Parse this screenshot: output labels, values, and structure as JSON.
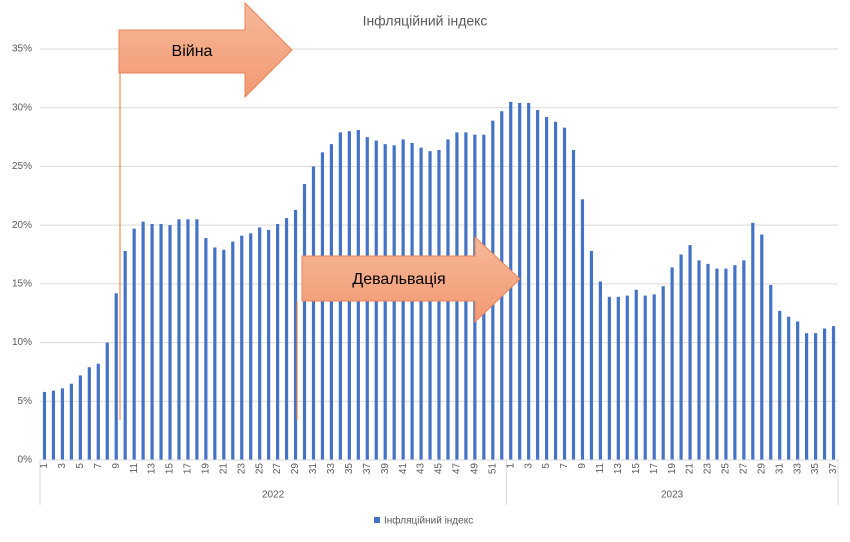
{
  "chart_data": {
    "type": "bar",
    "title": "Інфляційний індекс",
    "categories": [
      "1",
      null,
      "3",
      null,
      "5",
      null,
      "7",
      null,
      "9",
      null,
      "11",
      null,
      "13",
      null,
      "15",
      null,
      "17",
      null,
      "19",
      null,
      "21",
      null,
      "23",
      null,
      "25",
      null,
      "27",
      null,
      "29",
      null,
      "31",
      null,
      "33",
      null,
      "35",
      null,
      "37",
      null,
      "39",
      null,
      "41",
      null,
      "43",
      null,
      "45",
      null,
      "47",
      null,
      "49",
      null,
      "51",
      null,
      "1",
      null,
      "3",
      null,
      "5",
      null,
      "7",
      null,
      "9",
      null,
      "11",
      null,
      "13",
      null,
      "15",
      null,
      "17",
      null,
      "19",
      null,
      "21",
      null,
      "23",
      null,
      "25",
      null,
      "27",
      null,
      "29",
      null,
      "31",
      null,
      "33",
      null,
      "35",
      null,
      "37"
    ],
    "groups": [
      "2022",
      "2023"
    ],
    "series": [
      {
        "name": "Інфляційний індекс",
        "color": "#4472c4",
        "values": [
          5.8,
          5.9,
          6.1,
          6.5,
          7.2,
          7.9,
          8.2,
          10.0,
          14.2,
          17.8,
          19.7,
          20.3,
          20.1,
          20.1,
          20.0,
          20.5,
          20.5,
          20.5,
          18.9,
          18.1,
          17.9,
          18.6,
          19.1,
          19.3,
          19.8,
          19.6,
          20.1,
          20.6,
          21.3,
          23.5,
          25.0,
          26.2,
          26.9,
          27.9,
          28.0,
          28.1,
          27.5,
          27.2,
          26.9,
          26.8,
          27.3,
          27.0,
          26.6,
          26.3,
          26.4,
          27.3,
          27.9,
          27.9,
          27.7,
          27.7,
          28.9,
          29.7,
          30.5,
          30.4,
          30.4,
          29.8,
          29.2,
          28.8,
          28.3,
          26.4,
          22.2,
          17.8,
          15.2,
          13.9,
          13.9,
          14.0,
          14.5,
          14.0,
          14.1,
          14.8,
          16.4,
          17.5,
          18.3,
          17.0,
          16.7,
          16.3,
          16.3,
          16.6,
          17.0,
          20.2,
          19.2,
          14.9,
          12.7,
          12.2,
          11.8,
          10.8,
          10.8,
          11.2,
          11.4
        ]
      }
    ],
    "ylim": [
      0,
      35
    ],
    "yticks": [
      {
        "value": 0,
        "label": "0%"
      },
      {
        "value": 5,
        "label": "5%"
      },
      {
        "value": 10,
        "label": "10%"
      },
      {
        "value": 15,
        "label": "15%"
      },
      {
        "value": 20,
        "label": "20%"
      },
      {
        "value": 25,
        "label": "25%"
      },
      {
        "value": 30,
        "label": "30%"
      },
      {
        "value": 35,
        "label": "35%"
      }
    ],
    "grid": true,
    "annotations": [
      "Війна",
      "Девальвація"
    ]
  }
}
